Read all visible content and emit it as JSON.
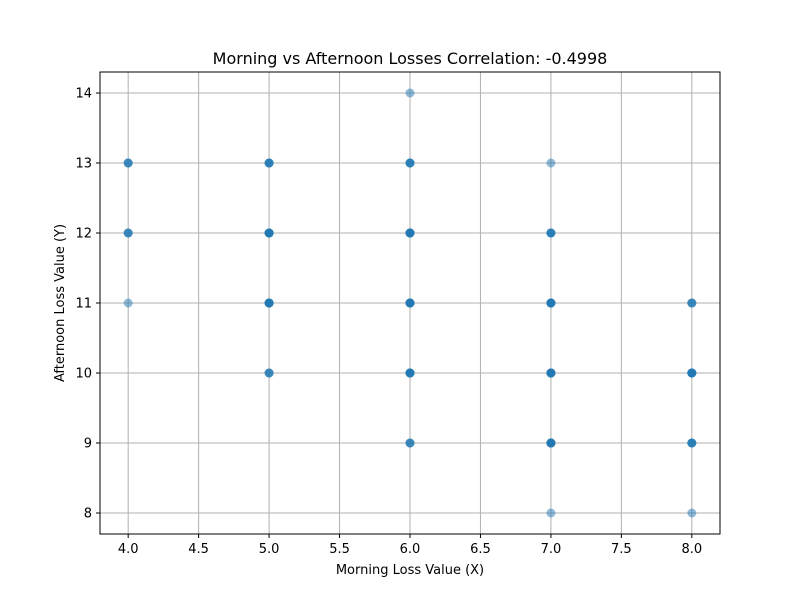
{
  "chart_data": {
    "type": "scatter",
    "title": "Morning vs Afternoon Losses Correlation: -0.4998",
    "xlabel": "Morning Loss Value (X)",
    "ylabel": "Afternoon Loss Value (Y)",
    "xlim": [
      3.8,
      8.2
    ],
    "ylim": [
      7.7,
      14.3
    ],
    "xticks": [
      "4.0",
      "4.5",
      "5.0",
      "5.5",
      "6.0",
      "6.5",
      "7.0",
      "7.5",
      "8.0"
    ],
    "yticks": [
      "8",
      "9",
      "10",
      "11",
      "12",
      "13",
      "14"
    ],
    "grid": true,
    "marker_color": "#1f77b4",
    "marker_alpha": 0.5,
    "points": [
      {
        "x": 4,
        "y": 13,
        "count": 3
      },
      {
        "x": 4,
        "y": 12,
        "count": 3
      },
      {
        "x": 4,
        "y": 11,
        "count": 1
      },
      {
        "x": 5,
        "y": 13,
        "count": 4
      },
      {
        "x": 5,
        "y": 12,
        "count": 6
      },
      {
        "x": 5,
        "y": 11,
        "count": 6
      },
      {
        "x": 5,
        "y": 10,
        "count": 3
      },
      {
        "x": 6,
        "y": 14,
        "count": 1
      },
      {
        "x": 6,
        "y": 13,
        "count": 4
      },
      {
        "x": 6,
        "y": 12,
        "count": 6
      },
      {
        "x": 6,
        "y": 11,
        "count": 6
      },
      {
        "x": 6,
        "y": 10,
        "count": 6
      },
      {
        "x": 6,
        "y": 9,
        "count": 3
      },
      {
        "x": 7,
        "y": 13,
        "count": 1
      },
      {
        "x": 7,
        "y": 12,
        "count": 4
      },
      {
        "x": 7,
        "y": 11,
        "count": 6
      },
      {
        "x": 7,
        "y": 10,
        "count": 6
      },
      {
        "x": 7,
        "y": 9,
        "count": 6
      },
      {
        "x": 7,
        "y": 8,
        "count": 1
      },
      {
        "x": 8,
        "y": 11,
        "count": 3
      },
      {
        "x": 8,
        "y": 10,
        "count": 6
      },
      {
        "x": 8,
        "y": 9,
        "count": 4
      },
      {
        "x": 8,
        "y": 8,
        "count": 1
      }
    ]
  }
}
